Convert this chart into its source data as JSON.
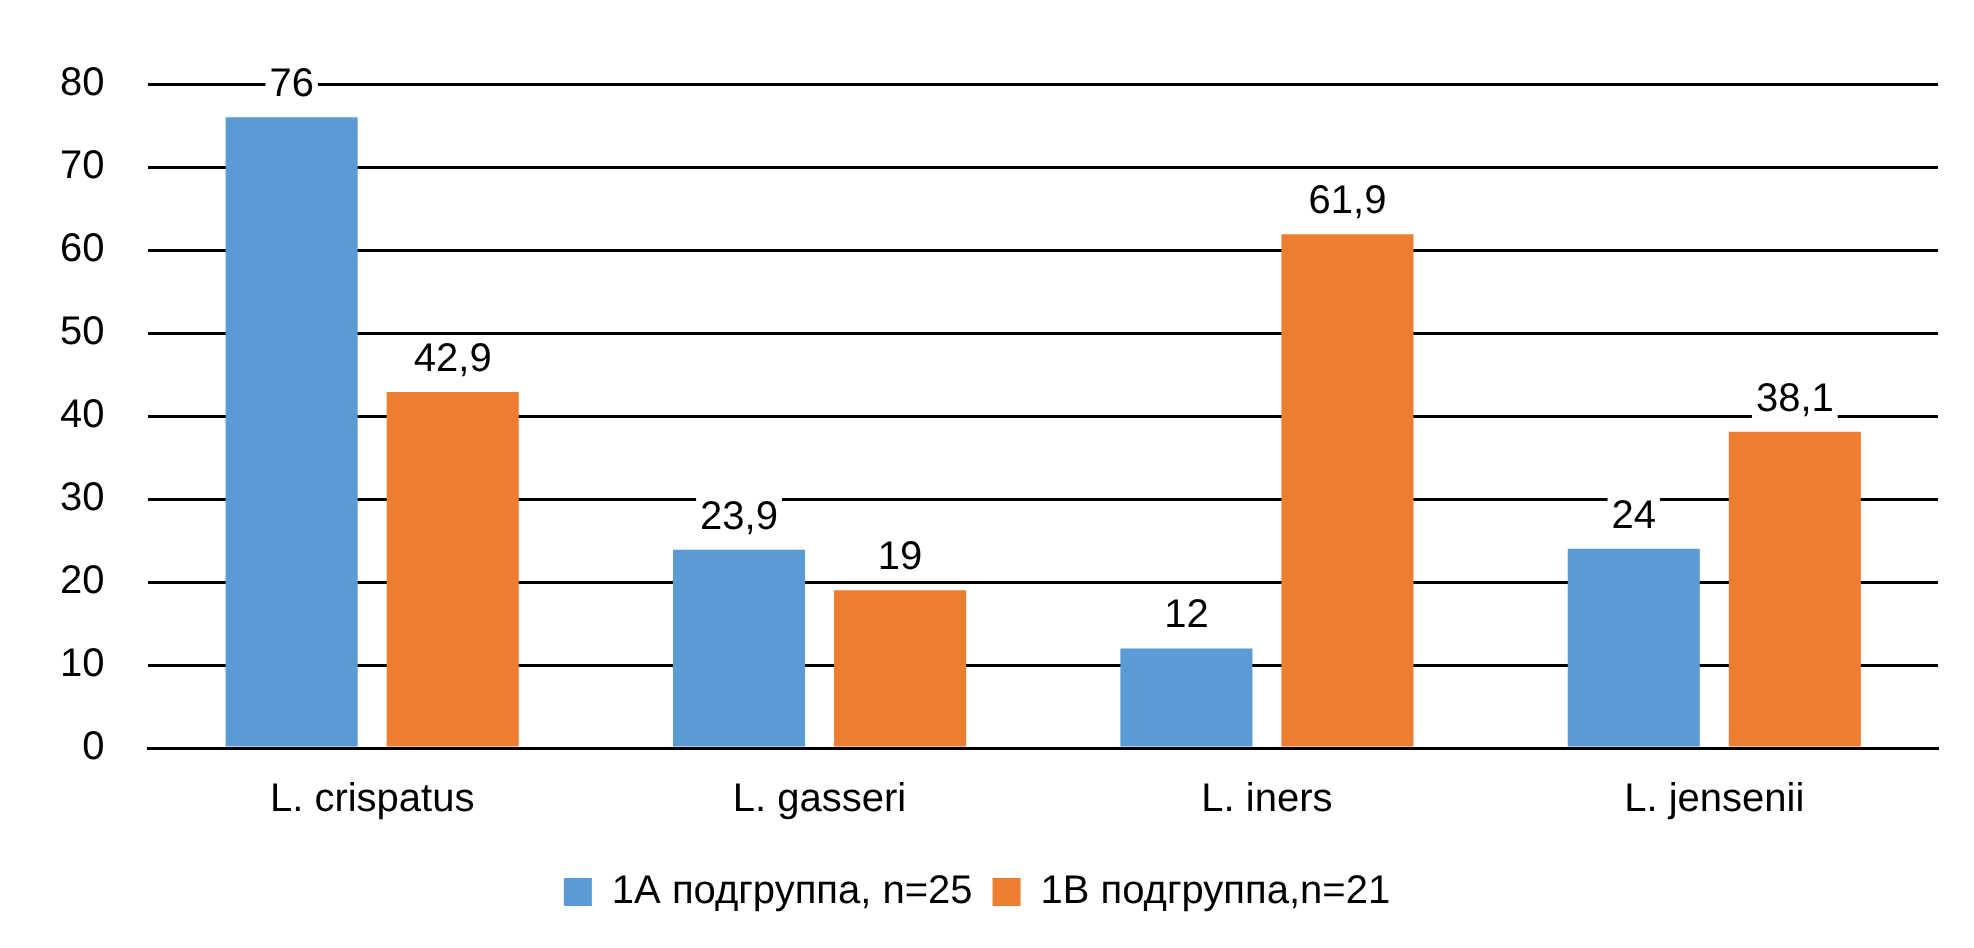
{
  "chart_data": {
    "type": "bar",
    "categories": [
      "L. crispatus",
      "L. gasseri",
      "L. iners",
      "L. jensenii"
    ],
    "series": [
      {
        "name": "1А подгруппа, n=25",
        "color": "#5b9bd5",
        "values": [
          76,
          23.9,
          12,
          24
        ],
        "value_labels": [
          "76",
          "23,9",
          "12",
          "24"
        ]
      },
      {
        "name": "1В подгруппа,n=21",
        "color": "#ed7d31",
        "values": [
          42.9,
          19,
          61.9,
          38.1
        ],
        "value_labels": [
          "42,9",
          "19",
          "61,9",
          "38,1"
        ]
      }
    ],
    "ylim": [
      0,
      80
    ],
    "yticks": [
      0,
      10,
      20,
      30,
      40,
      50,
      60,
      70,
      80
    ],
    "grid": "y",
    "legend": "bottom"
  }
}
